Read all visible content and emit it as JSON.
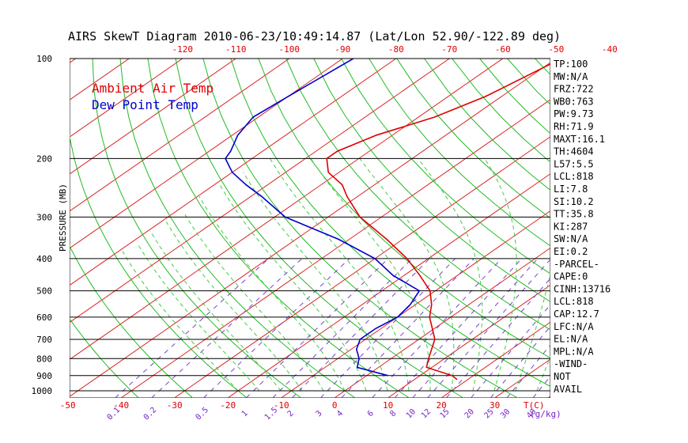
{
  "chart_data": {
    "type": "line",
    "title": "AIRS SkewT Diagram 2010-06-23/10:49:14.87 (Lat/Lon 52.90/-122.89 deg)",
    "ylabel": "PRESSURE (MB)",
    "xlabel": "T(C)",
    "mixing_ratio_unit": "(g/kg)",
    "pressure_ticks": [
      100,
      200,
      300,
      400,
      500,
      600,
      700,
      800,
      900,
      1000
    ],
    "top_temp_ticks": [
      -120,
      -110,
      -100,
      -90,
      -80,
      -70,
      -60,
      -50,
      -40
    ],
    "bottom_temp_ticks": [
      -50,
      -40,
      -30,
      -20,
      -10,
      0,
      10,
      20,
      30
    ],
    "mixing_ratio_labels": [
      "0.1",
      "0.2",
      "0.5",
      "1",
      "1.5",
      "2",
      "3",
      "4",
      "6",
      "8",
      "10",
      "12",
      "15",
      "20",
      "25",
      "30",
      "40"
    ],
    "mixing_ratio_values": [
      0.1,
      0.2,
      0.5,
      1,
      1.5,
      2,
      3,
      4,
      6,
      8,
      10,
      12,
      15,
      20,
      25,
      30,
      40
    ],
    "series": [
      {
        "name": "Ambient Air Temp",
        "color": "#dd0000",
        "points": [
          [
            100,
            -49
          ],
          [
            130,
            -53
          ],
          [
            150,
            -57
          ],
          [
            170,
            -63
          ],
          [
            190,
            -66
          ],
          [
            200,
            -66
          ],
          [
            220,
            -62
          ],
          [
            240,
            -56
          ],
          [
            260,
            -52
          ],
          [
            300,
            -44
          ],
          [
            350,
            -33
          ],
          [
            400,
            -24
          ],
          [
            450,
            -17
          ],
          [
            500,
            -11
          ],
          [
            550,
            -7
          ],
          [
            600,
            -4
          ],
          [
            700,
            3
          ],
          [
            800,
            7
          ],
          [
            850,
            9
          ],
          [
            900,
            16
          ],
          [
            925,
            18
          ]
        ]
      },
      {
        "name": "Dew Point Temp",
        "color": "#0000cc",
        "points": [
          [
            100,
            -88
          ],
          [
            130,
            -90
          ],
          [
            150,
            -91
          ],
          [
            170,
            -89
          ],
          [
            190,
            -86
          ],
          [
            200,
            -85
          ],
          [
            220,
            -80
          ],
          [
            240,
            -74
          ],
          [
            260,
            -68
          ],
          [
            300,
            -58
          ],
          [
            350,
            -42
          ],
          [
            400,
            -30
          ],
          [
            450,
            -22
          ],
          [
            500,
            -13
          ],
          [
            550,
            -11
          ],
          [
            600,
            -10
          ],
          [
            650,
            -11
          ],
          [
            700,
            -11
          ],
          [
            750,
            -9
          ],
          [
            800,
            -6
          ],
          [
            850,
            -4
          ],
          [
            900,
            4
          ]
        ]
      }
    ],
    "indices": [
      "TP:100",
      "MW:N/A",
      "FRZ:722",
      "WB0:763",
      "PW:9.73",
      "RH:71.9",
      "MAXT:16.1",
      "TH:4604",
      "L57:5.5",
      "LCL:818",
      "LI:7.8",
      "SI:10.2",
      "TT:35.8",
      "KI:287",
      "SW:N/A",
      "EI:0.2",
      "-PARCEL-",
      "CAPE:0",
      "CINH:13716",
      "LCL:818",
      "CAP:12.7",
      "LFC:N/A",
      "EL:N/A",
      "MPL:N/A",
      "-WIND-",
      "NOT",
      "AVAIL"
    ],
    "colors": {
      "isotherm": "#dd2222",
      "dry_adiabat": "#22bb22",
      "moist_adiabat": "#44cc44",
      "mixing_ratio": "#7744cc",
      "isobar": "#000000",
      "axis_label": "#dd0000",
      "mixing_label": "#7722cc"
    }
  }
}
